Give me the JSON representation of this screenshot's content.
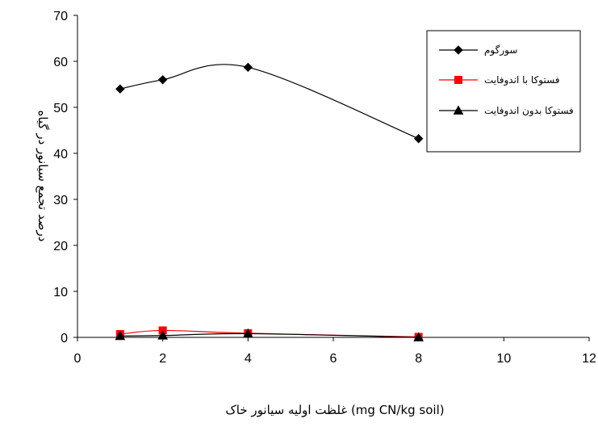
{
  "chart_data": {
    "type": "line",
    "title": "",
    "xlabel": "غلظت اولیه سیانور خاک (mg CN/kg soil)",
    "ylabel": "درصد تجمع سیانور در گیاه",
    "xlim": [
      0,
      12
    ],
    "ylim": [
      0,
      70
    ],
    "x_ticks": [
      0,
      2,
      4,
      6,
      8,
      10,
      12
    ],
    "y_ticks": [
      0,
      10,
      20,
      30,
      40,
      50,
      60,
      70
    ],
    "grid": false,
    "legend_position": "top-right",
    "series": [
      {
        "name": "سورگوم",
        "color": "#000000",
        "marker": "diamond",
        "x": [
          1,
          2,
          4,
          8
        ],
        "y": [
          54,
          56,
          58.7,
          43.2
        ]
      },
      {
        "name": "فستوکا با اندوفایت",
        "color": "#ff0000",
        "marker": "square",
        "x": [
          1,
          2,
          4,
          8
        ],
        "y": [
          0.7,
          1.5,
          0.9,
          0.1
        ]
      },
      {
        "name": "فستوکا بدون اندوفایت",
        "color": "#000000",
        "marker": "triangle",
        "x": [
          1,
          2,
          4,
          8
        ],
        "y": [
          0.3,
          0.4,
          0.8,
          0
        ]
      }
    ]
  }
}
